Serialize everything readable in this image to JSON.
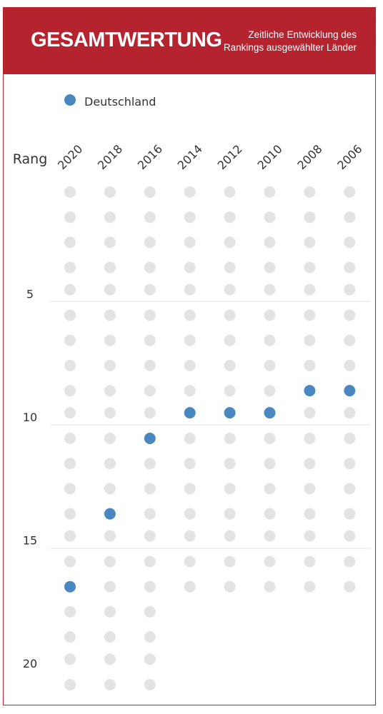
{
  "header": {
    "title": "GESAMTWERTUNG",
    "subtitle_line1": "Zeitliche Entwicklung des",
    "subtitle_line2": "Rankings ausgewählter Länder"
  },
  "colors": {
    "brand": "#b5232f",
    "highlight": "#4a87c0",
    "empty_dot": "#e3e3e3",
    "separator": "#e0e0e0"
  },
  "chart_data": {
    "type": "scatter",
    "ylabel": "Rang",
    "x": [
      "2020",
      "2018",
      "2016",
      "2014",
      "2012",
      "2010",
      "2008",
      "2006"
    ],
    "y_tick_labels": [
      "5",
      "10",
      "15",
      "20"
    ],
    "ylim": [
      1,
      21
    ],
    "y_inverted": true,
    "legend": {
      "position": "top-left"
    },
    "series": [
      {
        "name": "Deutschland",
        "values": [
          17,
          14,
          11,
          10,
          10,
          10,
          9,
          9
        ]
      }
    ],
    "countries_ranked_per_year": [
      21,
      21,
      21,
      17,
      17,
      17,
      17,
      17
    ]
  }
}
